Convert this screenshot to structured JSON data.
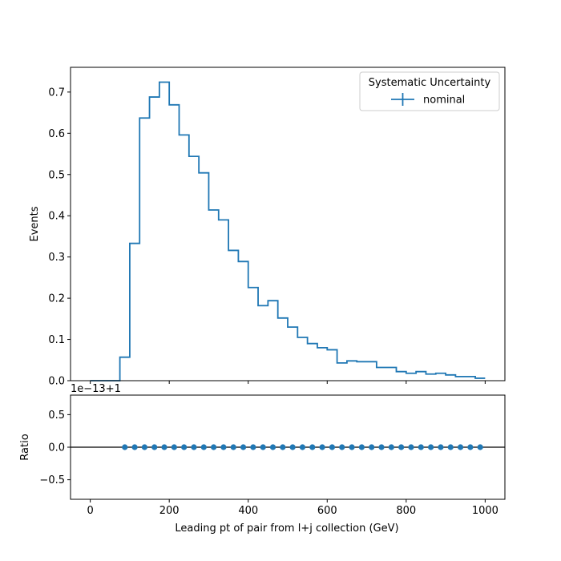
{
  "colors": {
    "series": "#1f77b4",
    "axis": "#000000",
    "legend_border": "#cccccc"
  },
  "chart_data": [
    {
      "type": "step",
      "xlabel": "",
      "ylabel": "Events",
      "xlim": [
        -50,
        1050
      ],
      "ylim": [
        0,
        0.76
      ],
      "xticks": [
        0,
        200,
        400,
        600,
        800,
        1000
      ],
      "yticks": [
        0.0,
        0.1,
        0.2,
        0.3,
        0.4,
        0.5,
        0.6,
        0.7
      ],
      "ytick_labels": [
        "0.0",
        "0.1",
        "0.2",
        "0.3",
        "0.4",
        "0.5",
        "0.6",
        "0.7"
      ],
      "grid": false,
      "legend": {
        "title": "Systematic Uncertainty",
        "location": "top-right",
        "entries": [
          "nominal"
        ]
      },
      "series": [
        {
          "name": "nominal",
          "bin_edges": [
            0,
            25,
            50,
            75,
            100,
            125,
            150,
            175,
            200,
            225,
            250,
            275,
            300,
            325,
            350,
            375,
            400,
            425,
            450,
            475,
            500,
            525,
            550,
            575,
            600,
            625,
            650,
            675,
            700,
            725,
            750,
            775,
            800,
            825,
            850,
            875,
            900,
            925,
            950,
            975,
            1000
          ],
          "values": [
            0,
            0,
            0,
            0.057,
            0.333,
            0.637,
            0.688,
            0.724,
            0.669,
            0.596,
            0.544,
            0.504,
            0.414,
            0.39,
            0.316,
            0.289,
            0.226,
            0.182,
            0.194,
            0.152,
            0.13,
            0.105,
            0.09,
            0.08,
            0.075,
            0.043,
            0.048,
            0.046,
            0.046,
            0.032,
            0.032,
            0.022,
            0.018,
            0.022,
            0.016,
            0.018,
            0.014,
            0.01,
            0.01,
            0.006
          ]
        }
      ]
    },
    {
      "type": "scatter",
      "xlabel": "Leading pt of pair from l+j collection (GeV)",
      "ylabel": "Ratio",
      "offset_text": "1e−13+1",
      "xlim": [
        -50,
        1050
      ],
      "ylim": [
        -0.8,
        0.8
      ],
      "xticks": [
        0,
        200,
        400,
        600,
        800,
        1000
      ],
      "xtick_labels": [
        "0",
        "200",
        "400",
        "600",
        "800",
        "1000"
      ],
      "yticks": [
        -0.5,
        0.0,
        0.5
      ],
      "ytick_labels": [
        "−0.5",
        "0.0",
        "0.5"
      ],
      "reference_line": 0.0,
      "grid": false,
      "x": [
        87.5,
        112.5,
        137.5,
        162.5,
        187.5,
        212.5,
        237.5,
        262.5,
        287.5,
        312.5,
        337.5,
        362.5,
        387.5,
        412.5,
        437.5,
        462.5,
        487.5,
        512.5,
        537.5,
        562.5,
        587.5,
        612.5,
        637.5,
        662.5,
        687.5,
        712.5,
        737.5,
        762.5,
        787.5,
        812.5,
        837.5,
        862.5,
        887.5,
        912.5,
        937.5,
        962.5,
        987.5
      ],
      "y": [
        0,
        0,
        0,
        0,
        0,
        0,
        0,
        0,
        0,
        0,
        0,
        0,
        0,
        0,
        0,
        0,
        0,
        0,
        0,
        0,
        0,
        0,
        0,
        0,
        0,
        0,
        0,
        0,
        0,
        0,
        0,
        0,
        0,
        0,
        0,
        0,
        0
      ]
    }
  ]
}
